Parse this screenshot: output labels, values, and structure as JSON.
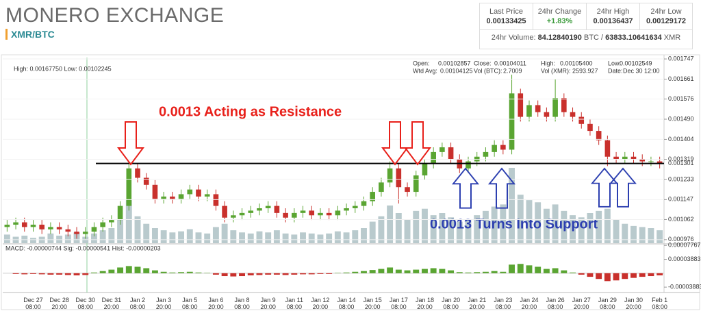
{
  "header": {
    "title": "MONERO EXCHANGE",
    "pair": "XMR/BTC"
  },
  "stats": {
    "labels": [
      "Last Price",
      "24hr Change",
      "24hr High",
      "24hr Low"
    ],
    "values": [
      "0.00133425",
      "+1.83%",
      "0.00136437",
      "0.00129172"
    ],
    "volume_label": "24hr Volume:",
    "volume_btc": "84.12840190",
    "btc_sep": "BTC /",
    "volume_xmr": "63833.10641634",
    "xmr": "XMR"
  },
  "chart_data": {
    "type": "candlestick",
    "high_low": "High: 0.00167750  Low: 0.00102245",
    "info": [
      [
        "Open:",
        "0.00102857"
      ],
      [
        "Close:",
        "0.00104011"
      ],
      [
        "High:",
        "0.00105400"
      ],
      [
        "Low:",
        "0.00102549"
      ],
      [
        "Wtd Avg:",
        "0.00104125"
      ],
      [
        "Vol (BTC):",
        "2.7009"
      ],
      [
        "Vol (XMR):",
        "2593.927"
      ],
      [
        "Date:",
        "Dec 30 12:00"
      ]
    ],
    "annotations": {
      "resistance": "0.0013 Acting as Resistance",
      "support": "0.0013 Turns Into Support"
    },
    "level": 0.001301,
    "categories": [
      null,
      null,
      null,
      "Dec 27 08:00",
      null,
      null,
      "Dec 28 20:00",
      null,
      null,
      "Dec 30 08:00",
      null,
      null,
      "Dec 31 20:00",
      null,
      null,
      "Jan 2 08:00",
      null,
      null,
      "Jan 3 20:00",
      null,
      null,
      "Jan 5 08:00",
      null,
      null,
      "Jan 6 20:00",
      null,
      null,
      "Jan 8 08:00",
      null,
      null,
      "Jan 9 20:00",
      null,
      null,
      "Jan 11 08:00",
      null,
      null,
      "Jan 12 20:00",
      null,
      null,
      "Jan 14 08:00",
      null,
      null,
      "Jan 15 20:00",
      null,
      null,
      "Jan 17 08:00",
      null,
      null,
      "Jan 18 20:00",
      null,
      null,
      "Jan 20 08:00",
      null,
      null,
      "Jan 21 20:00",
      null,
      null,
      "Jan 23 08:00",
      null,
      null,
      "Jan 24 20:00",
      null,
      null,
      "Jan 26 08:00",
      null,
      null,
      "Jan 27 20:00",
      null,
      null,
      "Jan 29 08:00",
      null,
      null,
      "Jan 30 20:00",
      null,
      null,
      "Feb 1 08:00"
    ],
    "open": [
      0.00103,
      0.00104,
      0.00105,
      0.00103,
      0.00104,
      0.00102,
      0.00103,
      0.00102,
      0.00101,
      0.001,
      0.00101,
      0.00103,
      0.00105,
      0.00106,
      0.00112,
      0.00128,
      0.00124,
      0.00121,
      0.00115,
      0.00116,
      0.00115,
      0.00117,
      0.00119,
      0.00116,
      0.00117,
      0.00112,
      0.00107,
      0.00108,
      0.00109,
      0.0011,
      0.00111,
      0.00112,
      0.00109,
      0.00107,
      0.00109,
      0.0011,
      0.00108,
      0.00109,
      0.00108,
      0.0011,
      0.00111,
      0.00112,
      0.00114,
      0.00118,
      0.00122,
      0.00128,
      0.0012,
      0.00118,
      0.00125,
      0.0013,
      0.00135,
      0.00137,
      0.00132,
      0.00128,
      0.00131,
      0.00133,
      0.00135,
      0.00138,
      0.00136,
      0.0016,
      0.0015,
      0.00155,
      0.00152,
      0.0015,
      0.00158,
      0.00152,
      0.0015,
      0.00147,
      0.00144,
      0.0014,
      0.00133,
      0.00132,
      0.00133,
      0.00132,
      0.00131,
      0.00131
    ],
    "high": [
      0.00106,
      0.00107,
      0.00107,
      0.00106,
      0.00106,
      0.00105,
      0.00105,
      0.00104,
      0.00103,
      0.00103,
      0.00105,
      0.00107,
      0.00108,
      0.00114,
      0.00131,
      0.0013,
      0.00126,
      0.00123,
      0.00118,
      0.00118,
      0.00119,
      0.00121,
      0.00121,
      0.00119,
      0.00119,
      0.00114,
      0.0011,
      0.00111,
      0.00112,
      0.00113,
      0.00114,
      0.00114,
      0.00111,
      0.00111,
      0.00112,
      0.00112,
      0.00111,
      0.00111,
      0.00112,
      0.00113,
      0.00114,
      0.00116,
      0.0012,
      0.00124,
      0.00131,
      0.0013,
      0.00122,
      0.00127,
      0.00132,
      0.00137,
      0.00139,
      0.00139,
      0.00134,
      0.00133,
      0.00135,
      0.00137,
      0.0014,
      0.0014,
      0.00168,
      0.00162,
      0.00157,
      0.00157,
      0.00154,
      0.00166,
      0.0016,
      0.00154,
      0.00152,
      0.00149,
      0.00146,
      0.00142,
      0.00135,
      0.00135,
      0.00135,
      0.00134,
      0.00133,
      0.00133
    ],
    "low": [
      0.00101,
      0.00102,
      0.00101,
      0.00101,
      0.001,
      0.001,
      0.001,
      0.00099,
      0.00098,
      0.00098,
      0.00099,
      0.00101,
      0.00103,
      0.00104,
      0.0011,
      0.00122,
      0.00119,
      0.00113,
      0.00113,
      0.00113,
      0.00113,
      0.00115,
      0.00114,
      0.00114,
      0.0011,
      0.00105,
      0.00105,
      0.00106,
      0.00107,
      0.00108,
      0.00109,
      0.00107,
      0.00105,
      0.00105,
      0.00107,
      0.00106,
      0.00106,
      0.00106,
      0.00106,
      0.00108,
      0.00109,
      0.0011,
      0.00112,
      0.00116,
      0.0012,
      0.00113,
      0.00116,
      0.00116,
      0.00123,
      0.00128,
      0.00133,
      0.0013,
      0.00126,
      0.00126,
      0.00129,
      0.00131,
      0.00133,
      0.00134,
      0.00134,
      0.00148,
      0.00148,
      0.0015,
      0.00148,
      0.00148,
      0.0015,
      0.00148,
      0.00145,
      0.00142,
      0.00138,
      0.00129,
      0.0013,
      0.0013,
      0.0013,
      0.00129,
      0.00129,
      0.00128
    ],
    "close": [
      0.00104,
      0.00105,
      0.00103,
      0.00104,
      0.00102,
      0.00103,
      0.00102,
      0.00101,
      0.001,
      0.00101,
      0.00103,
      0.00105,
      0.00106,
      0.00112,
      0.00128,
      0.00124,
      0.00121,
      0.00115,
      0.00116,
      0.00115,
      0.00117,
      0.00119,
      0.00116,
      0.00117,
      0.00112,
      0.00107,
      0.00108,
      0.00109,
      0.0011,
      0.00111,
      0.00112,
      0.00109,
      0.00107,
      0.00109,
      0.0011,
      0.00108,
      0.00109,
      0.00108,
      0.0011,
      0.00111,
      0.00112,
      0.00114,
      0.00118,
      0.00122,
      0.00128,
      0.0012,
      0.00118,
      0.00125,
      0.0013,
      0.00135,
      0.00137,
      0.00132,
      0.00128,
      0.00131,
      0.00133,
      0.00135,
      0.00138,
      0.00136,
      0.0016,
      0.0015,
      0.00155,
      0.00152,
      0.0015,
      0.00158,
      0.00152,
      0.0015,
      0.00147,
      0.00144,
      0.0014,
      0.00133,
      0.00132,
      0.00133,
      0.00132,
      0.00131,
      0.00131,
      0.0013
    ],
    "volume": [
      8,
      6,
      7,
      5,
      6,
      9,
      7,
      8,
      10,
      6,
      9,
      12,
      14,
      22,
      40,
      25,
      18,
      14,
      12,
      10,
      11,
      13,
      10,
      9,
      15,
      18,
      12,
      10,
      9,
      11,
      10,
      12,
      9,
      8,
      10,
      9,
      8,
      9,
      11,
      10,
      12,
      14,
      20,
      25,
      35,
      28,
      22,
      30,
      32,
      26,
      28,
      24,
      20,
      22,
      26,
      30,
      34,
      36,
      70,
      45,
      40,
      38,
      32,
      36,
      30,
      26,
      24,
      28,
      30,
      32,
      22,
      18,
      16,
      15,
      14,
      12
    ],
    "up_color": "#5aa532",
    "down_color": "#c9302c",
    "volume_color": "#b9cacd",
    "ylim": [
      0.000961,
      0.001753
    ],
    "yticks": [
      0.001747,
      0.001661,
      0.001576,
      {
        "value": 0.00149,
        "label": "0.001490"
      },
      0.001404,
      0.001319,
      0.001233,
      0.001147,
      0.001062,
      0.000976
    ],
    "macd": {
      "label": "MACD: -0.00000744  Sig: -0.00000541  Hist: -0.00000203",
      "hist": [
        0,
        -2e-06,
        -3e-06,
        -2e-06,
        -3e-06,
        -4e-06,
        -4e-06,
        -5e-06,
        -6e-06,
        -5e-06,
        2e-06,
        6e-06,
        1e-05,
        1.6e-05,
        2e-05,
        1.8e-05,
        1.4e-05,
        8e-06,
        4e-06,
        2e-06,
        3e-06,
        4e-06,
        2e-06,
        1e-06,
        -4e-06,
        -8e-06,
        -9e-06,
        -8e-06,
        -6e-06,
        -5e-06,
        -4e-06,
        -4e-06,
        -5e-06,
        -4e-06,
        -3e-06,
        -3e-06,
        -2e-06,
        -2e-06,
        1e-06,
        2e-06,
        4e-06,
        6e-06,
        9e-06,
        1.2e-05,
        1.6e-05,
        1e-05,
        8e-06,
        1e-05,
        1.2e-05,
        1.4e-05,
        1.2e-05,
        8e-06,
        3e-06,
        2e-06,
        3e-06,
        4e-06,
        6e-06,
        4e-06,
        2.4e-05,
        2.6e-05,
        2.2e-05,
        1.8e-05,
        1.2e-05,
        1.4e-05,
        8e-06,
        2e-06,
        -4e-06,
        -1e-05,
        -1.6e-05,
        -2.2e-05,
        -2e-05,
        -1.6e-05,
        -1.3e-05,
        -1e-05,
        -8e-06,
        -6e-06
      ],
      "ylim": [
        -5e-05,
        8e-05
      ],
      "yticks": [
        7.767e-05,
        3.883e-05,
        -3.883e-05
      ]
    }
  }
}
